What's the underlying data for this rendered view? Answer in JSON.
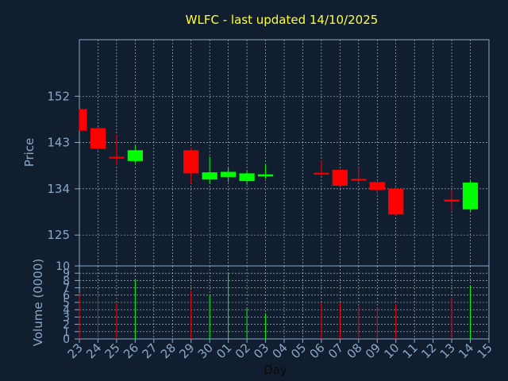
{
  "chart_data": {
    "type": "candlestick",
    "title": "WLFC - last updated 14/10/2025",
    "xlabel": "Day",
    "price_axis": {
      "label": "Price",
      "ticks": [
        125,
        134,
        143,
        152
      ],
      "range": [
        119,
        163
      ]
    },
    "volume_axis": {
      "label": "Volume (0000)",
      "ticks": [
        0,
        1,
        2,
        3,
        4,
        5,
        6,
        7,
        8,
        9,
        10
      ],
      "range": [
        0,
        10
      ]
    },
    "grid": true,
    "colors": {
      "up": "#00ff00",
      "down": "#ff0000",
      "background": "#111e30",
      "axis": "#8aa8c8",
      "title": "#ffff33"
    },
    "days": [
      "23",
      "24",
      "25",
      "26",
      "27",
      "28",
      "29",
      "30",
      "01",
      "02",
      "03",
      "04",
      "05",
      "06",
      "07",
      "08",
      "09",
      "10",
      "11",
      "12",
      "13",
      "14",
      "15"
    ],
    "candles": [
      {
        "day": "23",
        "open": 149.5,
        "high": 149.5,
        "low": 145.3,
        "close": 145.3,
        "volume": 6.3
      },
      {
        "day": "24",
        "open": 145.8,
        "high": 146.0,
        "low": 141.5,
        "close": 141.8,
        "volume": 6.3
      },
      {
        "day": "25",
        "open": 140.2,
        "high": 144.5,
        "low": 138.6,
        "close": 140.0,
        "volume": 4.9
      },
      {
        "day": "26",
        "open": 139.4,
        "high": 142.5,
        "low": 139.0,
        "close": 141.5,
        "volume": 8.1
      },
      {
        "day": "29",
        "open": 141.5,
        "high": 142.0,
        "low": 135.0,
        "close": 137.0,
        "volume": 6.6
      },
      {
        "day": "30",
        "open": 135.8,
        "high": 140.3,
        "low": 135.0,
        "close": 137.2,
        "volume": 6.0
      },
      {
        "day": "01",
        "open": 136.3,
        "high": 138.2,
        "low": 135.3,
        "close": 137.3,
        "volume": 9.0
      },
      {
        "day": "02",
        "open": 135.5,
        "high": 137.5,
        "low": 134.8,
        "close": 137.0,
        "volume": 4.2
      },
      {
        "day": "03",
        "open": 136.4,
        "high": 138.8,
        "low": 136.0,
        "close": 136.8,
        "volume": 3.5
      },
      {
        "day": "06",
        "open": 137.1,
        "high": 139.5,
        "low": 136.4,
        "close": 136.9,
        "volume": 5.0
      },
      {
        "day": "07",
        "open": 137.7,
        "high": 137.8,
        "low": 134.4,
        "close": 134.6,
        "volume": 5.0
      },
      {
        "day": "08",
        "open": 135.9,
        "high": 138.2,
        "low": 135.2,
        "close": 135.6,
        "volume": 4.5
      },
      {
        "day": "09",
        "open": 135.3,
        "high": 135.4,
        "low": 133.0,
        "close": 133.8,
        "volume": 4.3
      },
      {
        "day": "10",
        "open": 134.0,
        "high": 134.1,
        "low": 128.8,
        "close": 129.0,
        "volume": 4.8
      },
      {
        "day": "13",
        "open": 131.9,
        "high": 133.8,
        "low": 129.8,
        "close": 131.5,
        "volume": 5.7
      },
      {
        "day": "14",
        "open": 130.0,
        "high": 135.6,
        "low": 129.6,
        "close": 135.2,
        "volume": 7.3
      }
    ]
  }
}
